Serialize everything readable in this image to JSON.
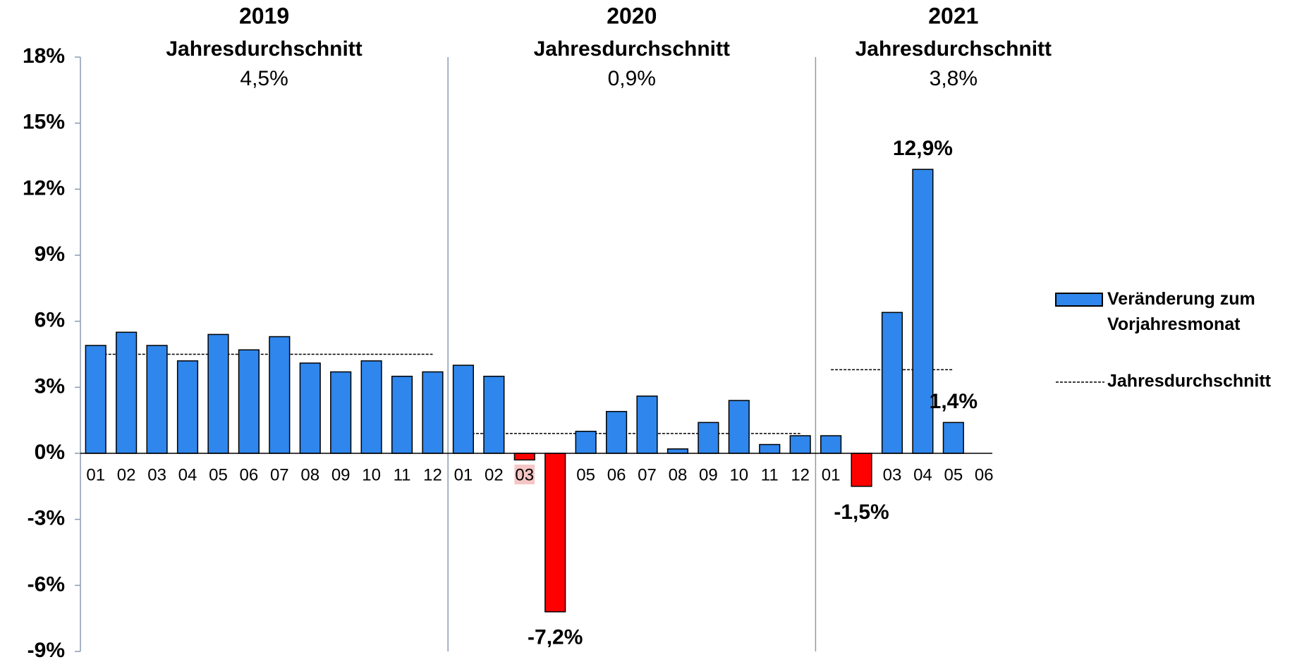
{
  "chart_data": {
    "type": "bar",
    "categories": [
      "01",
      "02",
      "03",
      "04",
      "05",
      "06",
      "07",
      "08",
      "09",
      "10",
      "11",
      "12",
      "01",
      "02",
      "03",
      "04",
      "05",
      "06",
      "07",
      "08",
      "09",
      "10",
      "11",
      "12",
      "01",
      "02",
      "03",
      "04",
      "05",
      "06"
    ],
    "series": [
      {
        "name": "Veränderung zum Vorjahresmonat",
        "color": "#2f86ec",
        "negative_color": "#ff0000",
        "values": [
          4.9,
          5.5,
          4.9,
          4.2,
          5.4,
          4.7,
          5.3,
          4.1,
          3.7,
          4.2,
          3.5,
          3.7,
          4.0,
          3.5,
          -0.3,
          -7.2,
          1.0,
          1.9,
          2.6,
          0.2,
          1.4,
          2.4,
          0.4,
          0.8,
          0.8,
          -1.5,
          6.4,
          12.9,
          1.4,
          null
        ],
        "value_labels": [
          null,
          null,
          null,
          null,
          null,
          null,
          null,
          null,
          null,
          null,
          null,
          null,
          null,
          null,
          null,
          "-7,2%",
          null,
          null,
          null,
          null,
          null,
          null,
          null,
          null,
          null,
          "-1,5%",
          null,
          "12,9%",
          "1,4%",
          null
        ]
      }
    ],
    "groups": [
      {
        "title": "2019",
        "subtitle": "Jahresdurchschnitt",
        "average": 4.5,
        "average_label": "4,5%"
      },
      {
        "title": "2020",
        "subtitle": "Jahresdurchschnitt",
        "average": 0.9,
        "average_label": "0,9%"
      },
      {
        "title": "2021",
        "subtitle": "Jahresdurchschnitt",
        "average": 3.8,
        "average_label": "3,8%"
      }
    ],
    "average_legend": "Jahresdurchschnitt",
    "ylim": [
      -9,
      18
    ],
    "yticks": [
      {
        "value": -9,
        "label": "-9%"
      },
      {
        "value": -6,
        "label": "-6%"
      },
      {
        "value": -3,
        "label": "-3%"
      },
      {
        "value": 0,
        "label": "0%"
      },
      {
        "value": 3,
        "label": "3%"
      },
      {
        "value": 6,
        "label": "6%"
      },
      {
        "value": 9,
        "label": "9%"
      },
      {
        "value": 12,
        "label": "12%"
      },
      {
        "value": 15,
        "label": "15%"
      },
      {
        "value": 18,
        "label": "18%"
      }
    ]
  }
}
